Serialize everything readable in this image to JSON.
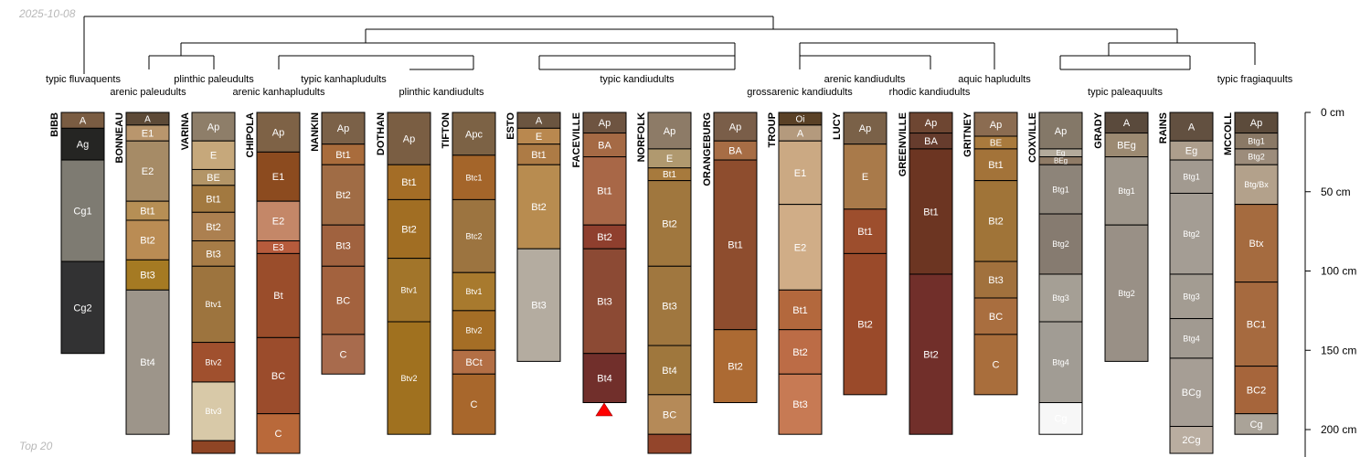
{
  "header": {
    "date": "2025-10-08",
    "footer": "Top 20"
  },
  "taxa": [
    "typic fluvaquents",
    "arenic paleudults",
    "plinthic paleudults",
    "arenic kanhapludults",
    "typic kanhapludults",
    "plinthic kandiudults",
    "typic kandiudults",
    "grossarenic kandiudults",
    "arenic kandiudults",
    "rhodic kandiudults",
    "aquic hapludults",
    "typic paleaquults",
    "typic fragiaquults"
  ],
  "axis": {
    "ticks": [
      {
        "depth": 0,
        "label": "0 cm"
      },
      {
        "depth": 50,
        "label": "50 cm"
      },
      {
        "depth": 100,
        "label": "100 cm"
      },
      {
        "depth": 150,
        "label": "150 cm"
      },
      {
        "depth": 200,
        "label": "200 cm"
      }
    ]
  },
  "profiles": [
    {
      "name": "BIBB",
      "horizons": [
        {
          "name": "A",
          "top": 0,
          "bottom": 10,
          "color": "#7a5c42"
        },
        {
          "name": "Ag",
          "top": 10,
          "bottom": 30,
          "color": "#252523"
        },
        {
          "name": "Cg1",
          "top": 30,
          "bottom": 94,
          "color": "#7e7b72"
        },
        {
          "name": "Cg2",
          "top": 94,
          "bottom": 152,
          "color": "#323233"
        }
      ]
    },
    {
      "name": "BONNEAU",
      "horizons": [
        {
          "name": "A",
          "top": 0,
          "bottom": 8,
          "color": "#5d4a37"
        },
        {
          "name": "E1",
          "top": 8,
          "bottom": 18,
          "color": "#b9966d"
        },
        {
          "name": "E2",
          "top": 18,
          "bottom": 56,
          "color": "#a68b66"
        },
        {
          "name": "Bt1",
          "top": 56,
          "bottom": 68,
          "color": "#b68f55"
        },
        {
          "name": "Bt2",
          "top": 68,
          "bottom": 93,
          "color": "#ba8c54"
        },
        {
          "name": "Bt3",
          "top": 93,
          "bottom": 112,
          "color": "#a57a23"
        },
        {
          "name": "Bt4",
          "top": 112,
          "bottom": 203,
          "color": "#9d958a"
        }
      ]
    },
    {
      "name": "VARINA",
      "horizons": [
        {
          "name": "Ap",
          "top": 0,
          "bottom": 18,
          "color": "#8e7e69"
        },
        {
          "name": "E",
          "top": 18,
          "bottom": 36,
          "color": "#c6a87b"
        },
        {
          "name": "BE",
          "top": 36,
          "bottom": 46,
          "color": "#b39567"
        },
        {
          "name": "Bt1",
          "top": 46,
          "bottom": 63,
          "color": "#a27940"
        },
        {
          "name": "Bt2",
          "top": 63,
          "bottom": 81,
          "color": "#ac8050"
        },
        {
          "name": "Bt3",
          "top": 81,
          "bottom": 97,
          "color": "#a77c47"
        },
        {
          "name": "Btv1",
          "top": 97,
          "bottom": 145,
          "color": "#9d743e"
        },
        {
          "name": "Btv2",
          "top": 145,
          "bottom": 170,
          "color": "#a0502e"
        },
        {
          "name": "Btv3",
          "top": 170,
          "bottom": 207,
          "color": "#d8c9a8"
        },
        {
          "name": "",
          "top": 207,
          "bottom": 215,
          "color": "#8f4525"
        }
      ]
    },
    {
      "name": "CHIPOLA",
      "horizons": [
        {
          "name": "Ap",
          "top": 0,
          "bottom": 25,
          "color": "#7e6246"
        },
        {
          "name": "E1",
          "top": 25,
          "bottom": 56,
          "color": "#8c4b1f"
        },
        {
          "name": "E2",
          "top": 56,
          "bottom": 81,
          "color": "#c48768"
        },
        {
          "name": "E3",
          "top": 81,
          "bottom": 89,
          "color": "#b65b3c"
        },
        {
          "name": "Bt",
          "top": 89,
          "bottom": 142,
          "color": "#9a4d2b"
        },
        {
          "name": "BC",
          "top": 142,
          "bottom": 190,
          "color": "#9b4c2c"
        },
        {
          "name": "C",
          "top": 190,
          "bottom": 215,
          "color": "#b9693a"
        }
      ]
    },
    {
      "name": "NANKIN",
      "horizons": [
        {
          "name": "Ap",
          "top": 0,
          "bottom": 20,
          "color": "#7b6148"
        },
        {
          "name": "Bt1",
          "top": 20,
          "bottom": 33,
          "color": "#a96c3c"
        },
        {
          "name": "Bt2",
          "top": 33,
          "bottom": 71,
          "color": "#a06c45"
        },
        {
          "name": "Bt3",
          "top": 71,
          "bottom": 97,
          "color": "#a0623f"
        },
        {
          "name": "BC",
          "top": 97,
          "bottom": 140,
          "color": "#a3623e"
        },
        {
          "name": "C",
          "top": 140,
          "bottom": 165,
          "color": "#a86b4d"
        }
      ]
    },
    {
      "name": "DOTHAN",
      "horizons": [
        {
          "name": "Ap",
          "top": 0,
          "bottom": 33,
          "color": "#7a5e43"
        },
        {
          "name": "Bt1",
          "top": 33,
          "bottom": 55,
          "color": "#a46d26"
        },
        {
          "name": "Bt2",
          "top": 55,
          "bottom": 92,
          "color": "#a16e23"
        },
        {
          "name": "Btv1",
          "top": 92,
          "bottom": 132,
          "color": "#a2752a"
        },
        {
          "name": "Btv2",
          "top": 132,
          "bottom": 203,
          "color": "#a0711f"
        }
      ]
    },
    {
      "name": "TIFTON",
      "horizons": [
        {
          "name": "Apc",
          "top": 0,
          "bottom": 27,
          "color": "#7c6245"
        },
        {
          "name": "Btc1",
          "top": 27,
          "bottom": 55,
          "color": "#a4652a"
        },
        {
          "name": "Btc2",
          "top": 55,
          "bottom": 101,
          "color": "#9c7440"
        },
        {
          "name": "Btv1",
          "top": 101,
          "bottom": 125,
          "color": "#a87a2e"
        },
        {
          "name": "Btv2",
          "top": 125,
          "bottom": 150,
          "color": "#a56e26"
        },
        {
          "name": "BCt",
          "top": 150,
          "bottom": 165,
          "color": "#b36f45"
        },
        {
          "name": "C",
          "top": 165,
          "bottom": 203,
          "color": "#a8672c"
        }
      ]
    },
    {
      "name": "ESTO",
      "horizons": [
        {
          "name": "A",
          "top": 0,
          "bottom": 10,
          "color": "#6b5540"
        },
        {
          "name": "E",
          "top": 10,
          "bottom": 20,
          "color": "#b9884f"
        },
        {
          "name": "Bt1",
          "top": 20,
          "bottom": 33,
          "color": "#ad7b45"
        },
        {
          "name": "Bt2",
          "top": 33,
          "bottom": 86,
          "color": "#b88c50"
        },
        {
          "name": "Bt3",
          "top": 86,
          "bottom": 157,
          "color": "#b4aca0"
        }
      ]
    },
    {
      "name": "FACEVILLE",
      "horizons": [
        {
          "name": "Ap",
          "top": 0,
          "bottom": 13,
          "color": "#6e5441"
        },
        {
          "name": "BA",
          "top": 13,
          "bottom": 28,
          "color": "#a56a45"
        },
        {
          "name": "Bt1",
          "top": 28,
          "bottom": 71,
          "color": "#a86747"
        },
        {
          "name": "Bt2",
          "top": 71,
          "bottom": 86,
          "color": "#8f3f2e"
        },
        {
          "name": "Bt3",
          "top": 86,
          "bottom": 152,
          "color": "#8c4a34"
        },
        {
          "name": "Bt4",
          "top": 152,
          "bottom": 183,
          "color": "#712f2b"
        }
      ]
    },
    {
      "name": "NORFOLK",
      "horizons": [
        {
          "name": "Ap",
          "top": 0,
          "bottom": 23,
          "color": "#8d7b67"
        },
        {
          "name": "E",
          "top": 23,
          "bottom": 35,
          "color": "#b0996f"
        },
        {
          "name": "Bt1",
          "top": 35,
          "bottom": 43,
          "color": "#a77a3d"
        },
        {
          "name": "Bt2",
          "top": 43,
          "bottom": 97,
          "color": "#a0773e"
        },
        {
          "name": "Bt3",
          "top": 97,
          "bottom": 147,
          "color": "#a0773f"
        },
        {
          "name": "Bt4",
          "top": 147,
          "bottom": 178,
          "color": "#9f773d"
        },
        {
          "name": "BC",
          "top": 178,
          "bottom": 203,
          "color": "#b58a58"
        },
        {
          "name": "",
          "top": 203,
          "bottom": 215,
          "color": "#93452b"
        }
      ]
    },
    {
      "name": "ORANGEBURG",
      "horizons": [
        {
          "name": "Ap",
          "top": 0,
          "bottom": 18,
          "color": "#7a5e49"
        },
        {
          "name": "BA",
          "top": 18,
          "bottom": 30,
          "color": "#a76d45"
        },
        {
          "name": "Bt1",
          "top": 30,
          "bottom": 137,
          "color": "#8e4d2e"
        },
        {
          "name": "Bt2",
          "top": 137,
          "bottom": 183,
          "color": "#ac6a33"
        }
      ]
    },
    {
      "name": "TROUP",
      "horizons": [
        {
          "name": "Oi",
          "top": 0,
          "bottom": 8,
          "color": "#5a4126"
        },
        {
          "name": "A",
          "top": 8,
          "bottom": 18,
          "color": "#b49a7d"
        },
        {
          "name": "E1",
          "top": 18,
          "bottom": 58,
          "color": "#cba983"
        },
        {
          "name": "E2",
          "top": 58,
          "bottom": 112,
          "color": "#d0ad87"
        },
        {
          "name": "Bt1",
          "top": 112,
          "bottom": 137,
          "color": "#b3683d"
        },
        {
          "name": "Bt2",
          "top": 137,
          "bottom": 165,
          "color": "#bc6c46"
        },
        {
          "name": "Bt3",
          "top": 165,
          "bottom": 203,
          "color": "#c77a54"
        }
      ]
    },
    {
      "name": "LUCY",
      "horizons": [
        {
          "name": "Ap",
          "top": 0,
          "bottom": 20,
          "color": "#7a6148"
        },
        {
          "name": "E",
          "top": 20,
          "bottom": 61,
          "color": "#a97a4a"
        },
        {
          "name": "Bt1",
          "top": 61,
          "bottom": 89,
          "color": "#9d4e2d"
        },
        {
          "name": "Bt2",
          "top": 89,
          "bottom": 178,
          "color": "#9a4a2a"
        }
      ]
    },
    {
      "name": "GREENVILLE",
      "horizons": [
        {
          "name": "Ap",
          "top": 0,
          "bottom": 13,
          "color": "#6e4632"
        },
        {
          "name": "BA",
          "top": 13,
          "bottom": 23,
          "color": "#663c2d"
        },
        {
          "name": "Bt1",
          "top": 23,
          "bottom": 102,
          "color": "#6c3522"
        },
        {
          "name": "Bt2",
          "top": 102,
          "bottom": 203,
          "color": "#712f2a"
        }
      ]
    },
    {
      "name": "GRITNEY",
      "horizons": [
        {
          "name": "Ap",
          "top": 0,
          "bottom": 15,
          "color": "#8b6c51"
        },
        {
          "name": "BE",
          "top": 15,
          "bottom": 23,
          "color": "#a97a3d"
        },
        {
          "name": "Bt1",
          "top": 23,
          "bottom": 43,
          "color": "#a37339"
        },
        {
          "name": "Bt2",
          "top": 43,
          "bottom": 94,
          "color": "#a07438"
        },
        {
          "name": "Bt3",
          "top": 94,
          "bottom": 117,
          "color": "#a1713d"
        },
        {
          "name": "BC",
          "top": 117,
          "bottom": 140,
          "color": "#a96e3f"
        },
        {
          "name": "C",
          "top": 140,
          "bottom": 178,
          "color": "#a96e3c"
        }
      ]
    },
    {
      "name": "COXVILLE",
      "horizons": [
        {
          "name": "Ap",
          "top": 0,
          "bottom": 23,
          "color": "#847868"
        },
        {
          "name": "Eg",
          "top": 23,
          "bottom": 28,
          "color": "#b3aa9b"
        },
        {
          "name": "BEg",
          "top": 28,
          "bottom": 33,
          "color": "#8f7b66"
        },
        {
          "name": "Btg1",
          "top": 33,
          "bottom": 64,
          "color": "#8d8479"
        },
        {
          "name": "Btg2",
          "top": 64,
          "bottom": 102,
          "color": "#867b70"
        },
        {
          "name": "Btg3",
          "top": 102,
          "bottom": 132,
          "color": "#a59f95"
        },
        {
          "name": "Btg4",
          "top": 132,
          "bottom": 183,
          "color": "#a19c94"
        },
        {
          "name": "Cg",
          "top": 183,
          "bottom": 203,
          "color": "#f7f7f7"
        }
      ]
    },
    {
      "name": "GRADY",
      "horizons": [
        {
          "name": "A",
          "top": 0,
          "bottom": 13,
          "color": "#5a4a3c"
        },
        {
          "name": "BEg",
          "top": 13,
          "bottom": 28,
          "color": "#9c8a72"
        },
        {
          "name": "Btg1",
          "top": 28,
          "bottom": 71,
          "color": "#9e968b"
        },
        {
          "name": "Btg2",
          "top": 71,
          "bottom": 157,
          "color": "#999086"
        }
      ]
    },
    {
      "name": "RAINS",
      "horizons": [
        {
          "name": "A",
          "top": 0,
          "bottom": 18,
          "color": "#625040"
        },
        {
          "name": "Eg",
          "top": 18,
          "bottom": 30,
          "color": "#ad9e8c"
        },
        {
          "name": "Btg1",
          "top": 30,
          "bottom": 51,
          "color": "#a29a90"
        },
        {
          "name": "Btg2",
          "top": 51,
          "bottom": 102,
          "color": "#a49d94"
        },
        {
          "name": "Btg3",
          "top": 102,
          "bottom": 130,
          "color": "#a39c92"
        },
        {
          "name": "Btg4",
          "top": 130,
          "bottom": 155,
          "color": "#a19a91"
        },
        {
          "name": "BCg",
          "top": 155,
          "bottom": 198,
          "color": "#a69e95"
        },
        {
          "name": "2Cg",
          "top": 198,
          "bottom": 215,
          "color": "#b9ada0"
        }
      ]
    },
    {
      "name": "MCCOLL",
      "horizons": [
        {
          "name": "Ap",
          "top": 0,
          "bottom": 13,
          "color": "#5c4b3b"
        },
        {
          "name": "Btg1",
          "top": 13,
          "bottom": 23,
          "color": "#8a7966"
        },
        {
          "name": "Btg2",
          "top": 23,
          "bottom": 33,
          "color": "#9c8c7b"
        },
        {
          "name": "Btg/Bx",
          "top": 33,
          "bottom": 58,
          "color": "#b3a18b"
        },
        {
          "name": "Btx",
          "top": 58,
          "bottom": 107,
          "color": "#a56b3f"
        },
        {
          "name": "BC1",
          "top": 107,
          "bottom": 160,
          "color": "#a66a3f"
        },
        {
          "name": "BC2",
          "top": 160,
          "bottom": 190,
          "color": "#a6653b"
        },
        {
          "name": "Cg",
          "top": 190,
          "bottom": 203,
          "color": "#aaa398"
        }
      ]
    }
  ]
}
